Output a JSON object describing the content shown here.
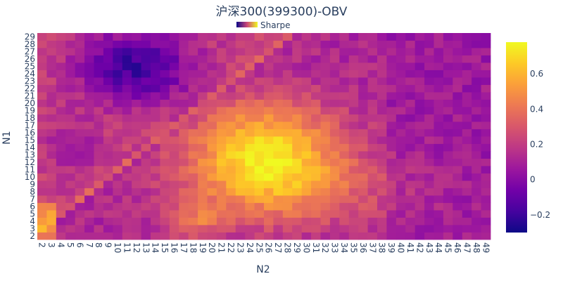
{
  "chart_data": {
    "type": "heatmap",
    "title": "沪深300(399300)-OBV",
    "xlabel": "N2",
    "ylabel": "N1",
    "legend": {
      "label": "Sharpe",
      "placement": "top-center"
    },
    "x": [
      2,
      3,
      4,
      5,
      6,
      7,
      8,
      9,
      10,
      11,
      12,
      13,
      14,
      15,
      16,
      17,
      18,
      19,
      20,
      21,
      22,
      23,
      24,
      25,
      26,
      27,
      28,
      29,
      30,
      31,
      32,
      33,
      34,
      35,
      36,
      37,
      38,
      39,
      40,
      41,
      42,
      43,
      44,
      45,
      46,
      47,
      48,
      49
    ],
    "y": [
      2,
      3,
      4,
      5,
      6,
      7,
      8,
      9,
      10,
      11,
      12,
      13,
      14,
      15,
      16,
      17,
      18,
      19,
      20,
      21,
      22,
      23,
      24,
      25,
      26,
      27,
      28,
      29
    ],
    "colorscale": {
      "name": "Plasma",
      "zmin": -0.3,
      "zmax": 0.78,
      "ticks": [
        -0.2,
        0,
        0.2,
        0.4,
        0.6
      ],
      "tick_labels": [
        "−0.2",
        "0",
        "0.2",
        "0.4",
        "0.6"
      ],
      "stops": [
        "#0d0887",
        "#46039f",
        "#7201a8",
        "#9c179e",
        "#bd3786",
        "#d8576b",
        "#ed7953",
        "#fb9f3a",
        "#fdca26",
        "#f0f921"
      ]
    },
    "z_description": "Sharpe ratio per (N1, N2) cell; values estimated from colour",
    "z_anchors": {
      "high_ridge": {
        "x_range": [
          20,
          31
        ],
        "y_range": [
          9,
          19
        ],
        "value": 0.7
      },
      "peak": {
        "x": 25,
        "y": 14,
        "value": 0.78
      },
      "low_region": {
        "x_range": [
          8,
          18
        ],
        "y_range": [
          20,
          29
        ],
        "value": -0.1
      },
      "min": {
        "x": 15,
        "y": 25,
        "value": -0.25
      },
      "left_bottom_high": {
        "x": 2,
        "y": 4,
        "value": 0.6
      },
      "right_region": {
        "x_range": [
          40,
          49
        ],
        "value": 0.25
      }
    }
  }
}
